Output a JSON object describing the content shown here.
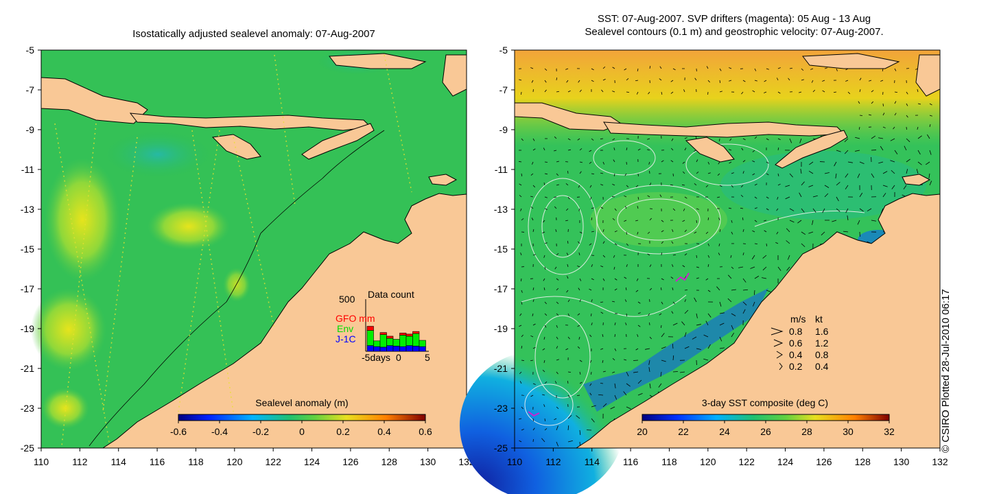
{
  "left_title": "Isostatically adjusted sealevel anomaly: 07-Aug-2007",
  "right_title_line1": "SST: 07-Aug-2007. SVP drifters (magenta): 05 Aug - 13 Aug",
  "right_title_line2": "Sealevel contours (0.1 m) and geostrophic velocity: 07-Aug-2007.",
  "copyright": "© CSIRO Plotted 28-Jul-2010 06:17",
  "colors": {
    "land": "#f9c896",
    "ocean_green": "#2dbe57",
    "ocean_light": "#6fd24a",
    "warm_yellow": "#e8e01a",
    "cool_teal": "#27b79a",
    "deep_blue": "#1030c0"
  },
  "chart_data": [
    {
      "type": "heatmap",
      "title": "Isostatically adjusted sealevel anomaly: 07-Aug-2007",
      "x_ticks": [
        "110",
        "112",
        "114",
        "116",
        "118",
        "120",
        "122",
        "124",
        "126",
        "128",
        "130",
        "132"
      ],
      "y_ticks": [
        "-5",
        "-7",
        "-9",
        "-11",
        "-13",
        "-15",
        "-17",
        "-19",
        "-21",
        "-23",
        "-25"
      ],
      "xlim": [
        110,
        132
      ],
      "ylim": [
        -25,
        -5
      ],
      "colorbar": {
        "label": "Sealevel anomaly (m)",
        "range": [
          -0.6,
          0.6
        ],
        "ticks": [
          "-0.6",
          "-0.4",
          "-0.2",
          "0",
          "0.2",
          "0.4",
          "0.6"
        ]
      },
      "data_count_inset": {
        "title": "Data count",
        "y_max_label": "500",
        "legend": [
          {
            "name": "GFO mm",
            "color": "#ff0000"
          },
          {
            "name": "Env",
            "color": "#00ee00"
          },
          {
            "name": "J-1C",
            "color": "#0000ff"
          }
        ],
        "x_labels": [
          "-5days",
          "0",
          "5"
        ],
        "days": [
          -5,
          -4,
          -3,
          -2,
          -1,
          0,
          1,
          2,
          3
        ],
        "series": [
          {
            "name": "J-1C",
            "values": [
              55,
              45,
              40,
              55,
              50,
              45,
              55,
              50,
              45
            ]
          },
          {
            "name": "Env",
            "values": [
              145,
              55,
              120,
              70,
              65,
              110,
              90,
              120,
              60
            ]
          },
          {
            "name": "GFO mm",
            "values": [
              40,
              0,
              20,
              20,
              0,
              20,
              20,
              20,
              0
            ]
          }
        ]
      }
    },
    {
      "type": "heatmap",
      "title": "SST: 07-Aug-2007. SVP drifters (magenta): 05 Aug - 13 Aug / Sealevel contours (0.1 m) and geostrophic velocity: 07-Aug-2007.",
      "x_ticks": [
        "110",
        "112",
        "114",
        "116",
        "118",
        "120",
        "122",
        "124",
        "126",
        "128",
        "130",
        "132"
      ],
      "y_ticks": [
        "-5",
        "-7",
        "-9",
        "-11",
        "-13",
        "-15",
        "-17",
        "-19",
        "-21",
        "-23",
        "-25"
      ],
      "xlim": [
        110,
        132
      ],
      "ylim": [
        -25,
        -5
      ],
      "colorbar": {
        "label": "3-day SST composite (deg C)",
        "range": [
          20,
          32
        ],
        "ticks": [
          "20",
          "22",
          "24",
          "26",
          "28",
          "30",
          "32"
        ]
      },
      "velocity_key": {
        "header_ms": "m/s",
        "header_kt": "kt",
        "rows": [
          {
            "ms": "0.8",
            "kt": "1.6"
          },
          {
            "ms": "0.6",
            "kt": "1.2"
          },
          {
            "ms": "0.4",
            "kt": "0.8"
          },
          {
            "ms": "0.2",
            "kt": "0.4"
          }
        ]
      }
    }
  ]
}
